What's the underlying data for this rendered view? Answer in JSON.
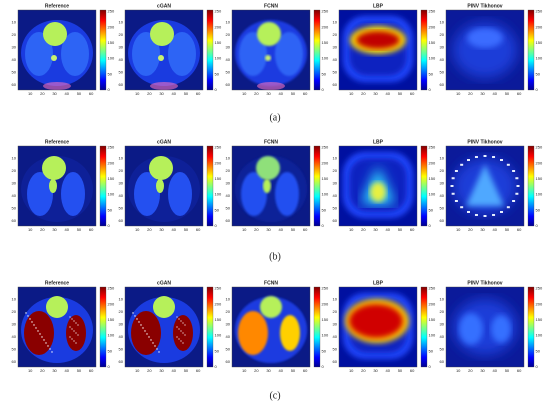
{
  "rows": [
    {
      "caption": "(a)",
      "panels": [
        {
          "title": "Reference"
        },
        {
          "title": "cGAN"
        },
        {
          "title": "FCNN"
        },
        {
          "title": "LBP"
        },
        {
          "title": "PINV Tikhonov"
        }
      ]
    },
    {
      "caption": "(b)",
      "panels": [
        {
          "title": "Reference"
        },
        {
          "title": "cGAN"
        },
        {
          "title": "FCNN"
        },
        {
          "title": "LBP"
        },
        {
          "title": "PINV Tikhonov"
        }
      ]
    },
    {
      "caption": "(c)",
      "panels": [
        {
          "title": "Reference"
        },
        {
          "title": "cGAN"
        },
        {
          "title": "FCNN"
        },
        {
          "title": "LBP"
        },
        {
          "title": "PINV Tikhonov"
        }
      ]
    }
  ],
  "axis_ticks": [
    10,
    20,
    30,
    40,
    50,
    60
  ],
  "colorbar_ticks": [
    0,
    50,
    100,
    150,
    200,
    250
  ]
}
